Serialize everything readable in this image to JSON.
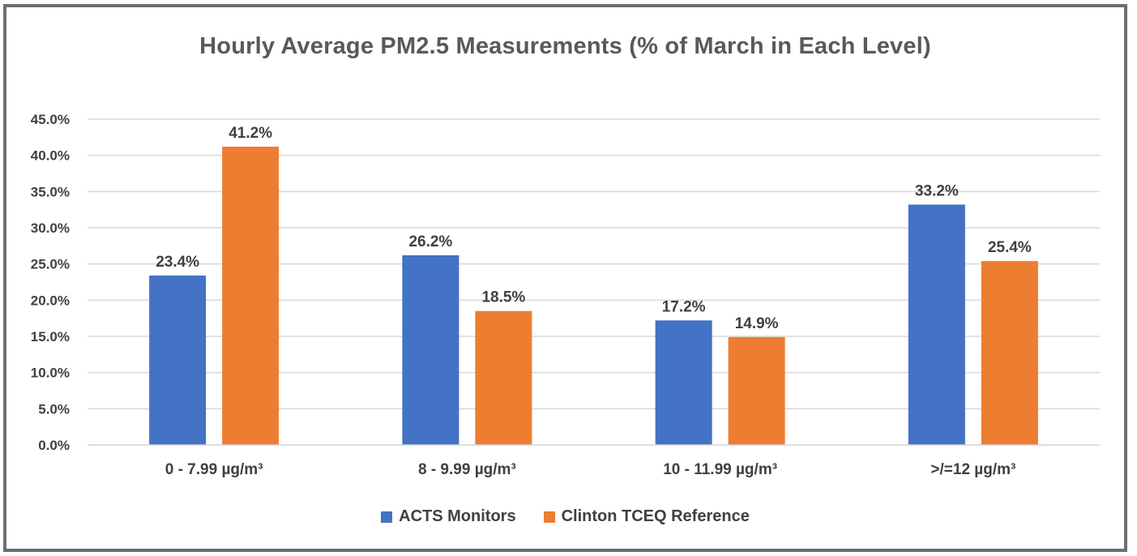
{
  "chart_data": {
    "type": "bar",
    "title": "Hourly Average PM2.5 Measurements (% of March in Each Level)",
    "categories": [
      "0 - 7.99 µg/m³",
      "8 - 9.99 µg/m³",
      "10 - 11.99 µg/m³",
      ">/=12 µg/m³"
    ],
    "series": [
      {
        "name": "ACTS Monitors",
        "color": "#4472c4",
        "values": [
          23.4,
          26.2,
          17.2,
          33.2
        ],
        "labels": [
          "23.4%",
          "26.2%",
          "17.2%",
          "33.2%"
        ]
      },
      {
        "name": "Clinton TCEQ Reference",
        "color": "#ed7d31",
        "values": [
          41.2,
          18.5,
          14.9,
          25.4
        ],
        "labels": [
          "41.2%",
          "18.5%",
          "14.9%",
          "25.4%"
        ]
      }
    ],
    "ylim": [
      0,
      45
    ],
    "yticks": [
      0,
      5,
      10,
      15,
      20,
      25,
      30,
      35,
      40,
      45
    ],
    "ytick_labels": [
      "0.0%",
      "5.0%",
      "10.0%",
      "15.0%",
      "20.0%",
      "25.0%",
      "30.0%",
      "35.0%",
      "40.0%",
      "45.0%"
    ],
    "grid": true,
    "legend_position": "bottom"
  }
}
